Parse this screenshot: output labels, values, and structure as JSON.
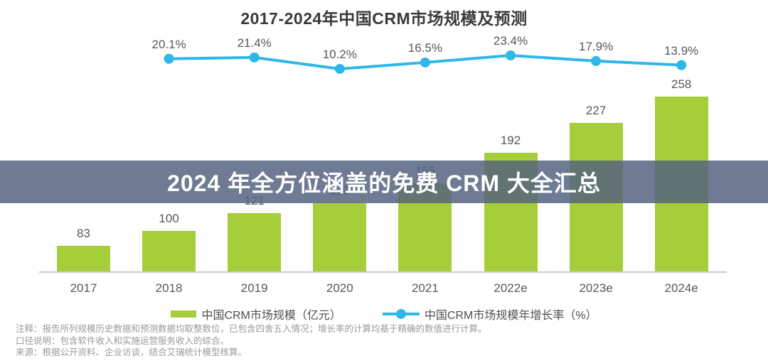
{
  "title": "2017-2024年中国CRM市场规模及预测",
  "overlay_banner": {
    "text": "2024 年全方位涵盖的免费 CRM 大全汇总",
    "bg_color": "rgba(84,98,126,0.84)",
    "text_color": "#ffffff"
  },
  "chart_data": {
    "type": "bar",
    "subtype": "bar+line combo",
    "title": "2017-2024年中国CRM市场规模及预测",
    "categories": [
      "2017",
      "2018",
      "2019",
      "2020",
      "2021",
      "2022e",
      "2023e",
      "2024e"
    ],
    "series": [
      {
        "name": "中国CRM市场规模（亿元）",
        "type": "bar",
        "unit": "亿元",
        "color": "#a6ce3b",
        "values": [
          83,
          100,
          121,
          133,
          156,
          192,
          227,
          258
        ],
        "note": "2020 bar data label is obscured by the overlay banner; 133 inferred from the 10.2% growth rate"
      },
      {
        "name": "中国CRM市场规模年增长率（%）",
        "type": "line",
        "unit": "%",
        "color": "#2fb7e9",
        "categories": [
          "2018",
          "2019",
          "2020",
          "2021",
          "2022e",
          "2023e",
          "2024e"
        ],
        "values": [
          20.1,
          21.4,
          10.2,
          16.5,
          23.4,
          17.9,
          13.9
        ]
      }
    ],
    "grid": false,
    "legend_position": "bottom",
    "xlabel": "",
    "ylabel": ""
  },
  "legend": {
    "items": [
      {
        "label": "中国CRM市场规模（亿元）",
        "marker": "bar-swatch",
        "color": "#a6ce3b"
      },
      {
        "label": "中国CRM市场规模年增长率（%）",
        "marker": "line-dot-swatch",
        "color": "#2fb7e9"
      }
    ]
  },
  "footnotes": [
    "注释：报告所列规模历史数据和预测数据均取整数位，已包含四舍五入情况；增长率的计算均基于精确的数值进行计算。",
    "口径说明：包含软件收入和实施运营服务收入的综合。",
    "来源：根据公开资料、企业访谈，结合艾瑞统计模型核算。"
  ],
  "colors": {
    "bar": "#a6ce3b",
    "line": "#2fb7e9",
    "banner_bg": "rgba(84,98,126,0.84)",
    "banner_text": "#ffffff",
    "data_label": "#595757",
    "axis_line": "#c9c9c9",
    "footnote": "#9a9a9a",
    "title": "#3a3a3a"
  }
}
